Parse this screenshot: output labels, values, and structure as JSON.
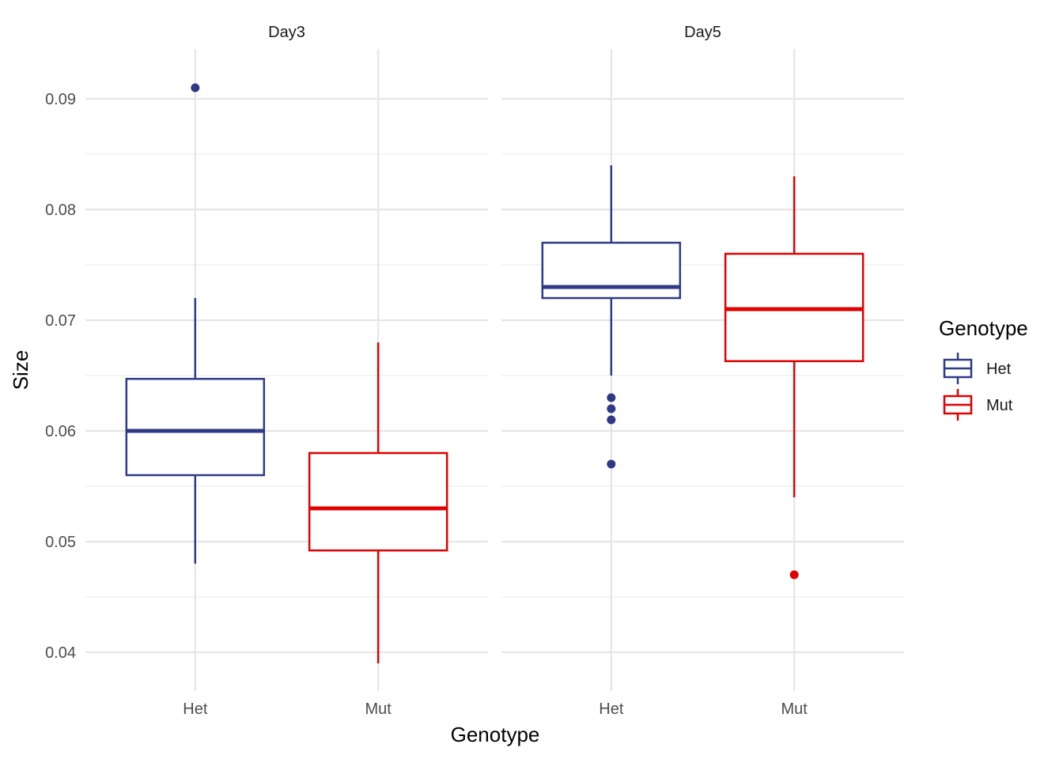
{
  "chart_data": {
    "type": "boxplot",
    "xlabel": "Genotype",
    "ylabel": "Size",
    "ylim": [
      0.0365,
      0.0945
    ],
    "yticks": [
      "0.04",
      "0.05",
      "0.06",
      "0.07",
      "0.08",
      "0.09"
    ],
    "categories": [
      "Het",
      "Mut"
    ],
    "grid": "on",
    "legend": {
      "title": "Genotype",
      "placement": "right",
      "entries": [
        {
          "label": "Het",
          "color": "#2e3a87"
        },
        {
          "label": "Mut",
          "color": "#e00000"
        }
      ]
    },
    "facets": [
      {
        "label": "Day3",
        "boxes": [
          {
            "category": "Het",
            "min": 0.048,
            "q1": 0.056,
            "median": 0.06,
            "q3": 0.0647,
            "max": 0.072,
            "outliers": [
              0.091
            ]
          },
          {
            "category": "Mut",
            "min": 0.039,
            "q1": 0.0492,
            "median": 0.053,
            "q3": 0.058,
            "max": 0.068,
            "outliers": []
          }
        ]
      },
      {
        "label": "Day5",
        "boxes": [
          {
            "category": "Het",
            "min": 0.065,
            "q1": 0.072,
            "median": 0.073,
            "q3": 0.077,
            "max": 0.084,
            "outliers": [
              0.063,
              0.062,
              0.061,
              0.057
            ]
          },
          {
            "category": "Mut",
            "min": 0.054,
            "q1": 0.0663,
            "median": 0.071,
            "q3": 0.076,
            "max": 0.083,
            "outliers": [
              0.047
            ]
          }
        ]
      }
    ]
  }
}
